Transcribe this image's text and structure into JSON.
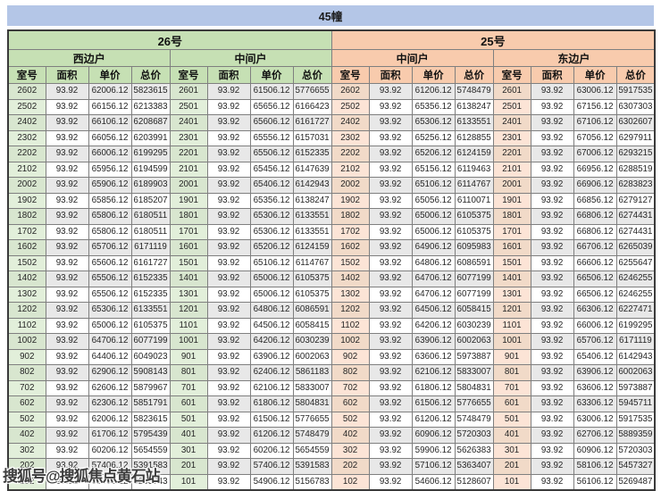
{
  "title": "45幢",
  "watermark": "搜狐号@搜狐焦点黄石站",
  "columns": [
    "室号",
    "面积",
    "单价",
    "总价"
  ],
  "colors": {
    "banner": "#b4c6e7",
    "unit26": "#c6e0b4",
    "unit25": "#f8cbad",
    "room_tint_green": "#e2efda",
    "room_tint_orange": "#fce4d6",
    "row_stripe": "#e8e8e8"
  },
  "units": [
    {
      "name": "26号",
      "groups": [
        {
          "name": "西边户",
          "rows": [
            [
              "2602",
              "93.92",
              "62006.12",
              "5823615"
            ],
            [
              "2502",
              "93.92",
              "66156.12",
              "6213383"
            ],
            [
              "2402",
              "93.92",
              "66106.12",
              "6208687"
            ],
            [
              "2302",
              "93.92",
              "66056.12",
              "6203991"
            ],
            [
              "2202",
              "93.92",
              "66006.12",
              "6199295"
            ],
            [
              "2102",
              "93.92",
              "65956.12",
              "6194599"
            ],
            [
              "2002",
              "93.92",
              "65906.12",
              "6189903"
            ],
            [
              "1902",
              "93.92",
              "65856.12",
              "6185207"
            ],
            [
              "1802",
              "93.92",
              "65806.12",
              "6180511"
            ],
            [
              "1702",
              "93.92",
              "65806.12",
              "6180511"
            ],
            [
              "1602",
              "93.92",
              "65706.12",
              "6171119"
            ],
            [
              "1502",
              "93.92",
              "65606.12",
              "6161727"
            ],
            [
              "1402",
              "93.92",
              "65506.12",
              "6152335"
            ],
            [
              "1302",
              "93.92",
              "65506.12",
              "6152335"
            ],
            [
              "1202",
              "93.92",
              "65306.12",
              "6133551"
            ],
            [
              "1102",
              "93.92",
              "65006.12",
              "6105375"
            ],
            [
              "1002",
              "93.92",
              "64706.12",
              "6077199"
            ],
            [
              "902",
              "93.92",
              "64406.12",
              "6049023"
            ],
            [
              "802",
              "93.92",
              "62906.12",
              "5908143"
            ],
            [
              "702",
              "93.92",
              "62606.12",
              "5879967"
            ],
            [
              "602",
              "93.92",
              "62306.12",
              "5851791"
            ],
            [
              "502",
              "93.92",
              "62006.12",
              "5823615"
            ],
            [
              "402",
              "93.92",
              "61706.12",
              "5795439"
            ],
            [
              "302",
              "93.92",
              "60206.12",
              "5654559"
            ],
            [
              "202",
              "93.92",
              "57406.12",
              "5391583"
            ],
            [
              "102",
              "93.92",
              "55406.12",
              "5203743"
            ]
          ]
        },
        {
          "name": "中间户",
          "rows": [
            [
              "2601",
              "93.92",
              "61506.12",
              "5776655"
            ],
            [
              "2501",
              "93.92",
              "65656.12",
              "6166423"
            ],
            [
              "2401",
              "93.92",
              "65606.12",
              "6161727"
            ],
            [
              "2301",
              "93.92",
              "65556.12",
              "6157031"
            ],
            [
              "2201",
              "93.92",
              "65506.12",
              "6152335"
            ],
            [
              "2101",
              "93.92",
              "65456.12",
              "6147639"
            ],
            [
              "2001",
              "93.92",
              "65406.12",
              "6142943"
            ],
            [
              "1901",
              "93.92",
              "65356.12",
              "6138247"
            ],
            [
              "1801",
              "93.92",
              "65306.12",
              "6133551"
            ],
            [
              "1701",
              "93.92",
              "65306.12",
              "6133551"
            ],
            [
              "1601",
              "93.92",
              "65206.12",
              "6124159"
            ],
            [
              "1501",
              "93.92",
              "65106.12",
              "6114767"
            ],
            [
              "1401",
              "93.92",
              "65006.12",
              "6105375"
            ],
            [
              "1301",
              "93.92",
              "65006.12",
              "6105375"
            ],
            [
              "1201",
              "93.92",
              "64806.12",
              "6086591"
            ],
            [
              "1101",
              "93.92",
              "64506.12",
              "6058415"
            ],
            [
              "1001",
              "93.92",
              "64206.12",
              "6030239"
            ],
            [
              "901",
              "93.92",
              "63906.12",
              "6002063"
            ],
            [
              "801",
              "93.92",
              "62406.12",
              "5861183"
            ],
            [
              "701",
              "93.92",
              "62106.12",
              "5833007"
            ],
            [
              "601",
              "93.92",
              "61806.12",
              "5804831"
            ],
            [
              "501",
              "93.92",
              "61506.12",
              "5776655"
            ],
            [
              "401",
              "93.92",
              "61206.12",
              "5748479"
            ],
            [
              "301",
              "93.92",
              "60206.12",
              "5654559"
            ],
            [
              "201",
              "93.92",
              "57406.12",
              "5391583"
            ],
            [
              "101",
              "93.92",
              "54906.12",
              "5156783"
            ]
          ]
        }
      ]
    },
    {
      "name": "25号",
      "groups": [
        {
          "name": "中间户",
          "rows": [
            [
              "2602",
              "93.92",
              "61206.12",
              "5748479"
            ],
            [
              "2502",
              "93.92",
              "65356.12",
              "6138247"
            ],
            [
              "2402",
              "93.92",
              "65306.12",
              "6133551"
            ],
            [
              "2302",
              "93.92",
              "65256.12",
              "6128855"
            ],
            [
              "2202",
              "93.92",
              "65206.12",
              "6124159"
            ],
            [
              "2102",
              "93.92",
              "65156.12",
              "6119463"
            ],
            [
              "2002",
              "93.92",
              "65106.12",
              "6114767"
            ],
            [
              "1902",
              "93.92",
              "65056.12",
              "6110071"
            ],
            [
              "1802",
              "93.92",
              "65006.12",
              "6105375"
            ],
            [
              "1702",
              "93.92",
              "65006.12",
              "6105375"
            ],
            [
              "1602",
              "93.92",
              "64906.12",
              "6095983"
            ],
            [
              "1502",
              "93.92",
              "64806.12",
              "6086591"
            ],
            [
              "1402",
              "93.92",
              "64706.12",
              "6077199"
            ],
            [
              "1302",
              "93.92",
              "64706.12",
              "6077199"
            ],
            [
              "1202",
              "93.92",
              "64506.12",
              "6058415"
            ],
            [
              "1102",
              "93.92",
              "64206.12",
              "6030239"
            ],
            [
              "1002",
              "93.92",
              "63906.12",
              "6002063"
            ],
            [
              "902",
              "93.92",
              "63606.12",
              "5973887"
            ],
            [
              "802",
              "93.92",
              "62106.12",
              "5833007"
            ],
            [
              "702",
              "93.92",
              "61806.12",
              "5804831"
            ],
            [
              "602",
              "93.92",
              "61506.12",
              "5776655"
            ],
            [
              "502",
              "93.92",
              "61206.12",
              "5748479"
            ],
            [
              "402",
              "93.92",
              "60906.12",
              "5720303"
            ],
            [
              "302",
              "93.92",
              "59906.12",
              "5626383"
            ],
            [
              "202",
              "93.92",
              "57106.12",
              "5363407"
            ],
            [
              "102",
              "93.92",
              "54606.12",
              "5128607"
            ]
          ]
        },
        {
          "name": "东边户",
          "rows": [
            [
              "2601",
              "93.92",
              "63006.12",
              "5917535"
            ],
            [
              "2501",
              "93.92",
              "67156.12",
              "6307303"
            ],
            [
              "2401",
              "93.92",
              "67106.12",
              "6302607"
            ],
            [
              "2301",
              "93.92",
              "67056.12",
              "6297911"
            ],
            [
              "2201",
              "93.92",
              "67006.12",
              "6293215"
            ],
            [
              "2101",
              "93.92",
              "66956.12",
              "6288519"
            ],
            [
              "2001",
              "93.92",
              "66906.12",
              "6283823"
            ],
            [
              "1901",
              "93.92",
              "66856.12",
              "6279127"
            ],
            [
              "1801",
              "93.92",
              "66806.12",
              "6274431"
            ],
            [
              "1701",
              "93.92",
              "66806.12",
              "6274431"
            ],
            [
              "1601",
              "93.92",
              "66706.12",
              "6265039"
            ],
            [
              "1501",
              "93.92",
              "66606.12",
              "6255647"
            ],
            [
              "1401",
              "93.92",
              "66506.12",
              "6246255"
            ],
            [
              "1301",
              "93.92",
              "66506.12",
              "6246255"
            ],
            [
              "1201",
              "93.92",
              "66306.12",
              "6227471"
            ],
            [
              "1101",
              "93.92",
              "66006.12",
              "6199295"
            ],
            [
              "1001",
              "93.92",
              "65706.12",
              "6171119"
            ],
            [
              "901",
              "93.92",
              "65406.12",
              "6142943"
            ],
            [
              "801",
              "93.92",
              "63906.12",
              "6002063"
            ],
            [
              "701",
              "93.92",
              "63606.12",
              "5973887"
            ],
            [
              "601",
              "93.92",
              "63306.12",
              "5945711"
            ],
            [
              "501",
              "93.92",
              "63006.12",
              "5917535"
            ],
            [
              "401",
              "93.92",
              "62706.12",
              "5889359"
            ],
            [
              "301",
              "93.92",
              "60906.12",
              "5720303"
            ],
            [
              "201",
              "93.92",
              "58106.12",
              "5457327"
            ],
            [
              "101",
              "93.92",
              "56106.12",
              "5269487"
            ]
          ]
        }
      ]
    }
  ]
}
